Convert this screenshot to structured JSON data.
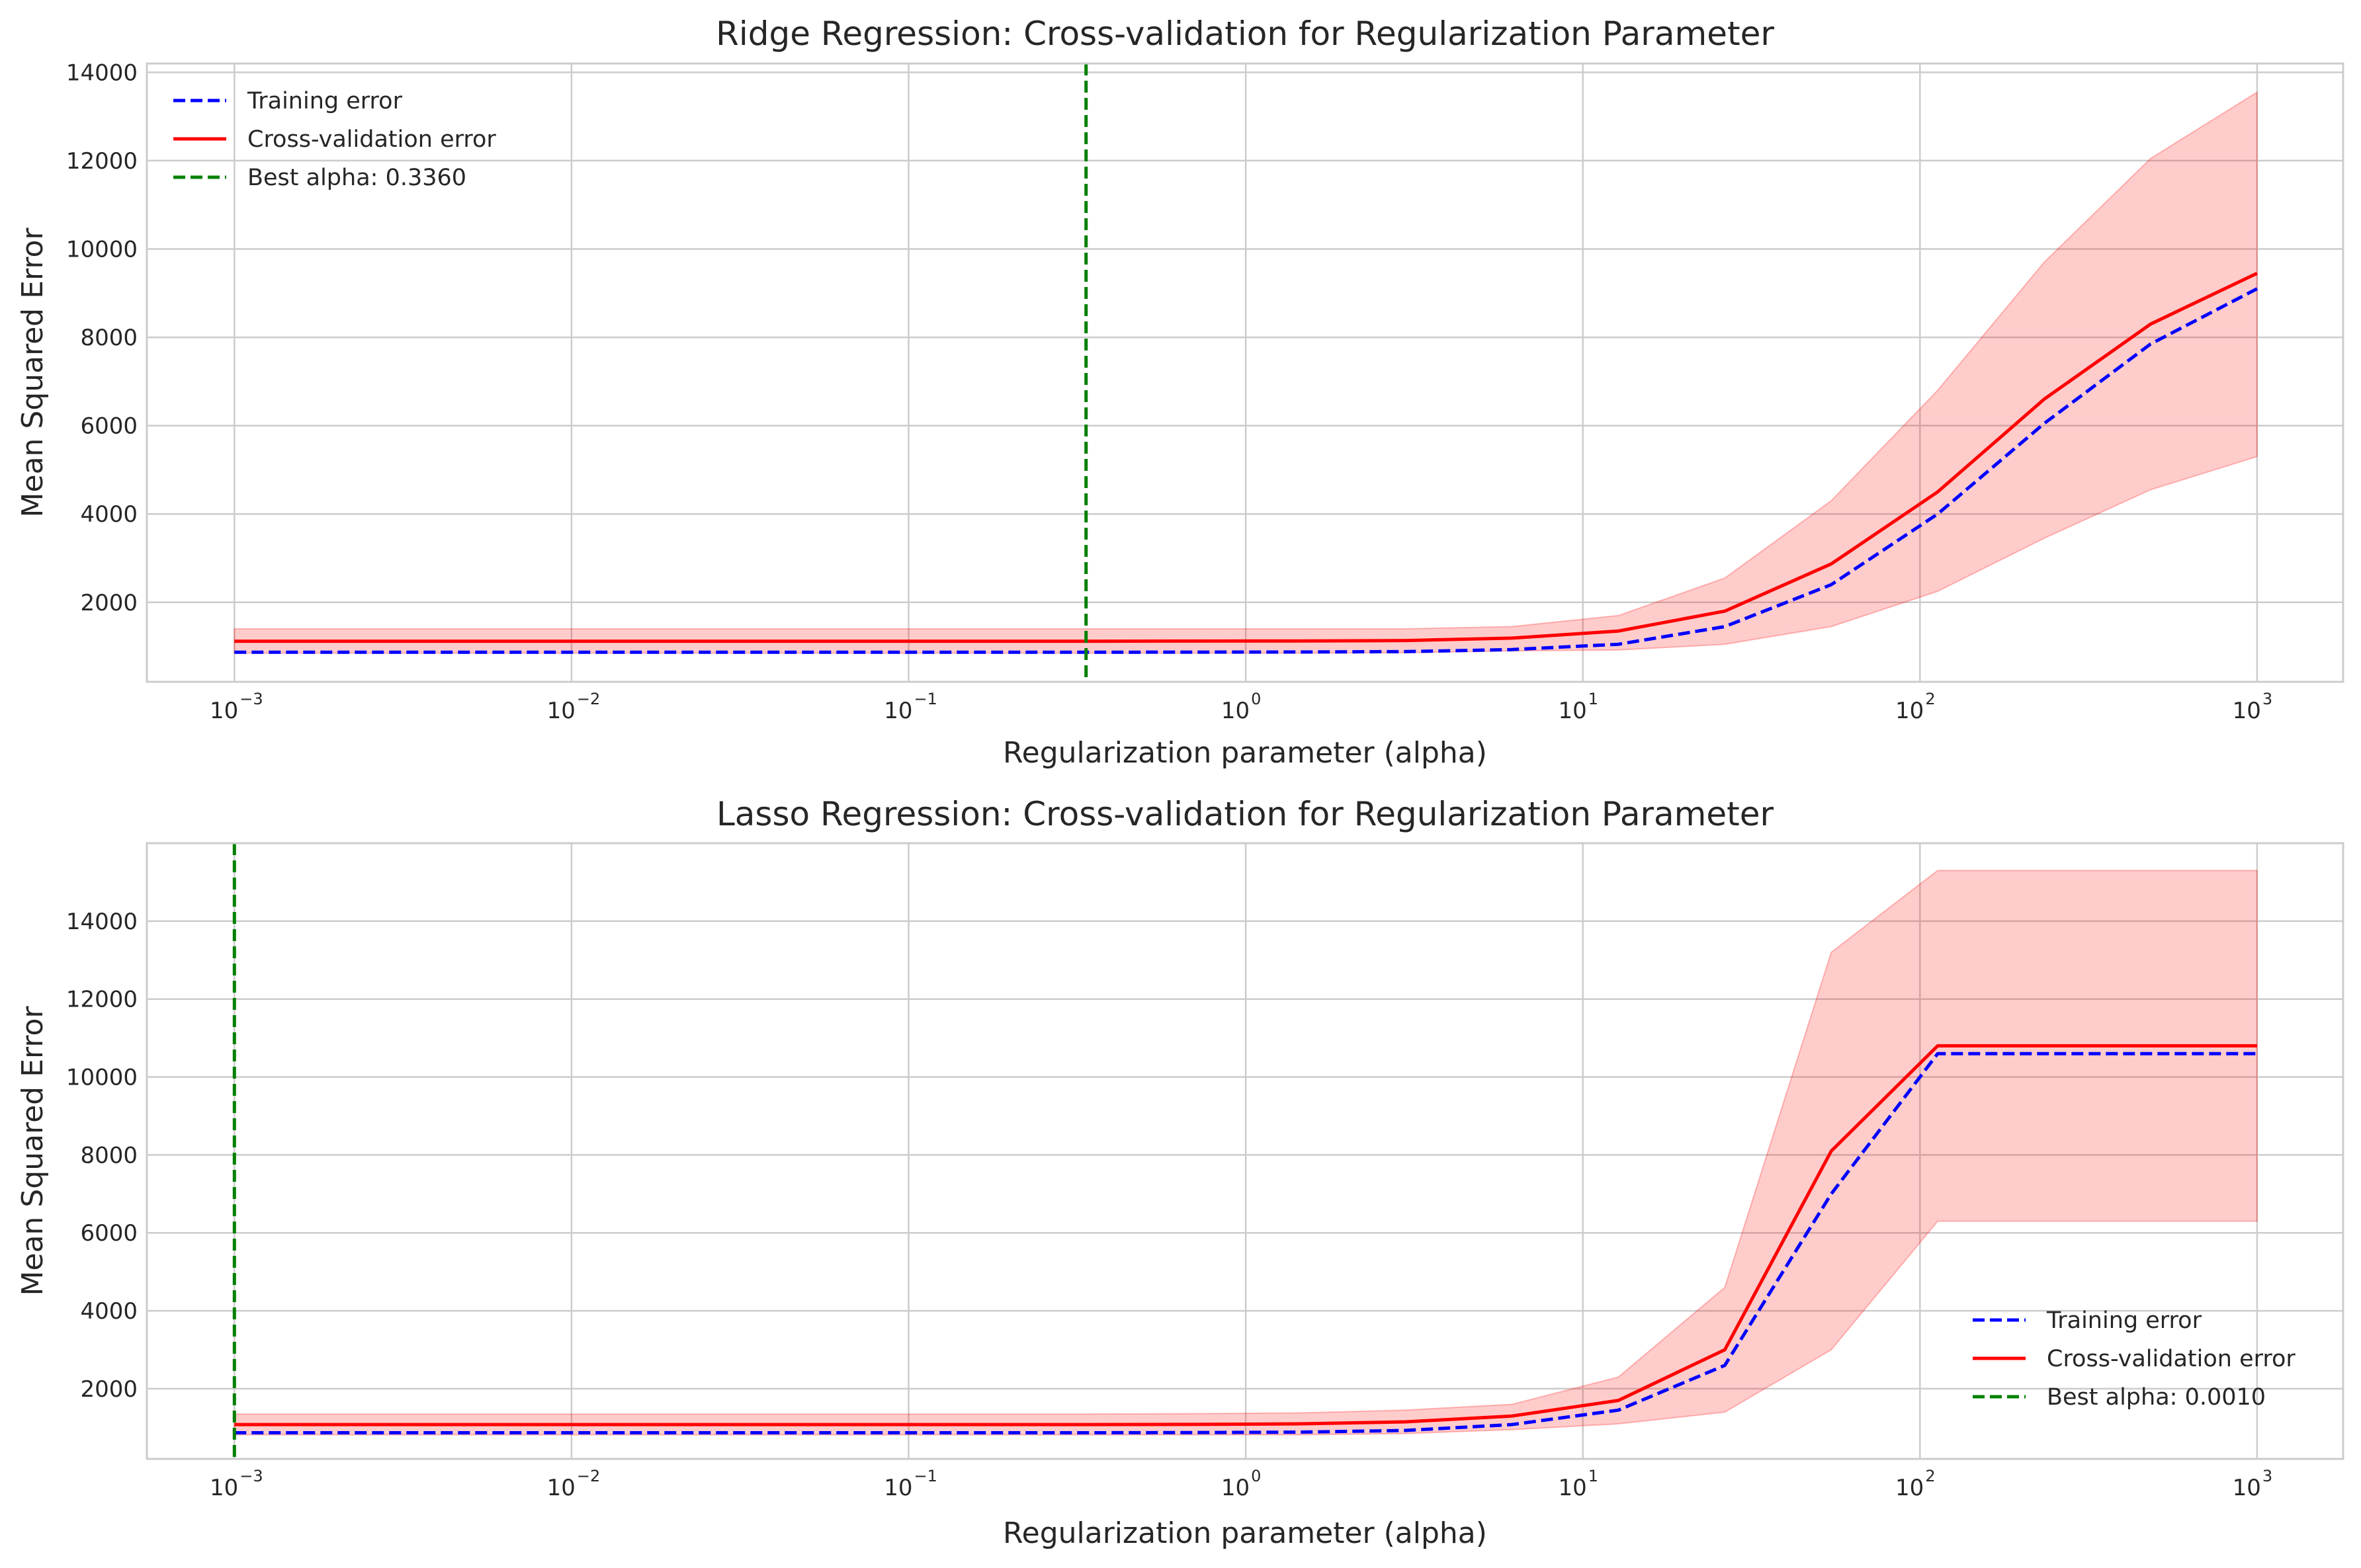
{
  "chart_data": [
    {
      "type": "line",
      "title": "Ridge Regression: Cross-validation for Regularization Parameter",
      "xlabel": "Regularization parameter (alpha)",
      "ylabel": "Mean Squared Error",
      "xscale": "log",
      "xlim": [
        0.00055,
        1800
      ],
      "ylim": [
        200,
        14200
      ],
      "xticks": [
        0.001,
        0.01,
        0.1,
        1,
        10,
        100,
        1000
      ],
      "xtick_labels": [
        {
          "base": "10",
          "exp": "−3"
        },
        {
          "base": "10",
          "exp": "−2"
        },
        {
          "base": "10",
          "exp": "−1"
        },
        {
          "base": "10",
          "exp": "0"
        },
        {
          "base": "10",
          "exp": "1"
        },
        {
          "base": "10",
          "exp": "2"
        },
        {
          "base": "10",
          "exp": "3"
        }
      ],
      "yticks": [
        2000,
        4000,
        6000,
        8000,
        10000,
        12000,
        14000
      ],
      "ytick_labels": [
        "2000",
        "4000",
        "6000",
        "8000",
        "10000",
        "12000",
        "14000"
      ],
      "grid": true,
      "legend_position": "upper-left",
      "x": [
        0.001,
        0.00207,
        0.00428,
        0.00886,
        0.01833,
        0.03793,
        0.07848,
        0.16238,
        0.33598,
        0.69519,
        1.43845,
        2.97635,
        6.15848,
        12.74275,
        26.36651,
        54.55595,
        112.88379,
        233.57215,
        483.29302,
        1000
      ],
      "series": [
        {
          "name": "Training error",
          "style": "dashed",
          "color": "#0000ff",
          "values": [
            870,
            870,
            870,
            870,
            870,
            870,
            870,
            870,
            870,
            872,
            875,
            885,
            930,
            1050,
            1450,
            2400,
            4000,
            6050,
            7850,
            9100
          ]
        },
        {
          "name": "Cross-validation error",
          "style": "solid",
          "color": "#ff0000",
          "values": [
            1120,
            1120,
            1120,
            1120,
            1120,
            1120,
            1120,
            1120,
            1120,
            1122,
            1125,
            1135,
            1190,
            1350,
            1800,
            2870,
            4500,
            6600,
            8300,
            9450
          ],
          "band_lower": [
            850,
            850,
            850,
            850,
            850,
            850,
            850,
            850,
            850,
            850,
            850,
            860,
            900,
            920,
            1050,
            1450,
            2250,
            3450,
            4550,
            5300
          ],
          "band_upper": [
            1400,
            1400,
            1400,
            1400,
            1400,
            1400,
            1400,
            1400,
            1400,
            1400,
            1400,
            1400,
            1450,
            1700,
            2550,
            4300,
            6800,
            9700,
            12050,
            13550
          ],
          "band_color": "#ff0000",
          "band_opacity": 0.2
        },
        {
          "name": "Best alpha: 0.3360",
          "style": "dashed",
          "color": "#008000",
          "vline_x": 0.336
        }
      ]
    },
    {
      "type": "line",
      "title": "Lasso Regression: Cross-validation for Regularization Parameter",
      "xlabel": "Regularization parameter (alpha)",
      "ylabel": "Mean Squared Error",
      "xscale": "log",
      "xlim": [
        0.00055,
        1800
      ],
      "ylim": [
        200,
        16000
      ],
      "xticks": [
        0.001,
        0.01,
        0.1,
        1,
        10,
        100,
        1000
      ],
      "xtick_labels": [
        {
          "base": "10",
          "exp": "−3"
        },
        {
          "base": "10",
          "exp": "−2"
        },
        {
          "base": "10",
          "exp": "−1"
        },
        {
          "base": "10",
          "exp": "0"
        },
        {
          "base": "10",
          "exp": "1"
        },
        {
          "base": "10",
          "exp": "2"
        },
        {
          "base": "10",
          "exp": "3"
        }
      ],
      "yticks": [
        2000,
        4000,
        6000,
        8000,
        10000,
        12000,
        14000
      ],
      "ytick_labels": [
        "2000",
        "4000",
        "6000",
        "8000",
        "10000",
        "12000",
        "14000"
      ],
      "grid": true,
      "legend_position": "lower-right",
      "x": [
        0.001,
        0.00207,
        0.00428,
        0.00886,
        0.01833,
        0.03793,
        0.07848,
        0.16238,
        0.33598,
        0.69519,
        1.43845,
        2.97635,
        6.15848,
        12.74275,
        26.36651,
        54.55595,
        112.88379,
        233.57215,
        483.29302,
        1000
      ],
      "series": [
        {
          "name": "Training error",
          "style": "dashed",
          "color": "#0000ff",
          "values": [
            870,
            870,
            870,
            870,
            870,
            870,
            870,
            870,
            870,
            875,
            885,
            930,
            1080,
            1450,
            2600,
            7000,
            10600,
            10600,
            10600,
            10600
          ]
        },
        {
          "name": "Cross-validation error",
          "style": "solid",
          "color": "#ff0000",
          "values": [
            1080,
            1080,
            1080,
            1080,
            1080,
            1080,
            1080,
            1080,
            1080,
            1085,
            1100,
            1150,
            1300,
            1700,
            3000,
            8100,
            10800,
            10800,
            10800,
            10800
          ],
          "band_lower": [
            820,
            820,
            820,
            820,
            820,
            820,
            820,
            820,
            820,
            820,
            820,
            850,
            950,
            1100,
            1400,
            3000,
            6300,
            6300,
            6300,
            6300
          ],
          "band_upper": [
            1350,
            1350,
            1350,
            1350,
            1350,
            1350,
            1350,
            1350,
            1350,
            1360,
            1380,
            1450,
            1600,
            2300,
            4600,
            13200,
            15300,
            15300,
            15300,
            15300
          ],
          "band_color": "#ff0000",
          "band_opacity": 0.2
        },
        {
          "name": "Best alpha: 0.0010",
          "style": "dashed",
          "color": "#008000",
          "vline_x": 0.001
        }
      ]
    }
  ]
}
